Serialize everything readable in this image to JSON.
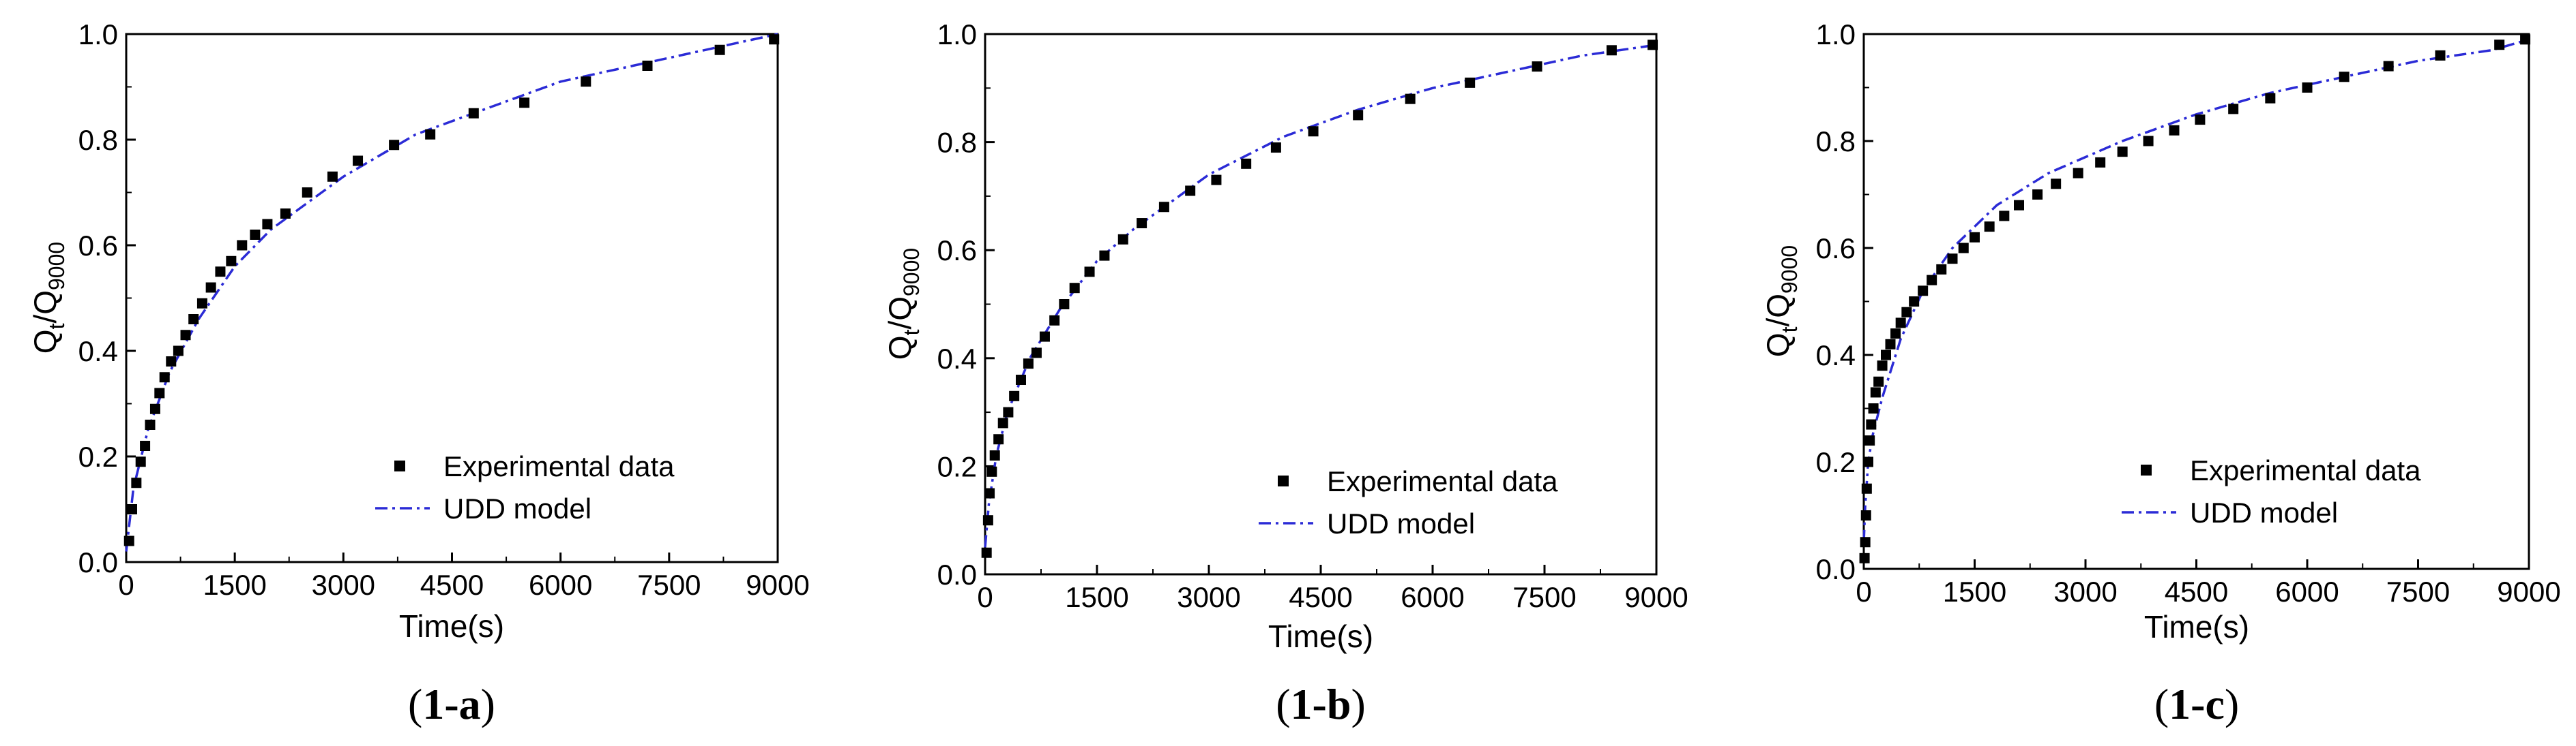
{
  "chart_data": [
    {
      "type": "scatter",
      "caption": "1-a",
      "xlabel": "Time(s)",
      "ylabel_main": "Q",
      "ylabel_sub1": "t",
      "ylabel_mid": "/Q",
      "ylabel_sub2": "9000",
      "xlim": [
        0,
        9000
      ],
      "ylim": [
        0,
        1.0
      ],
      "xticks": [
        "0",
        "1500",
        "3000",
        "4500",
        "6000",
        "7500",
        "9000"
      ],
      "yticks": [
        "0.0",
        "0.2",
        "0.4",
        "0.6",
        "0.8",
        "1.0"
      ],
      "grid": false,
      "legend_position": "lower-right",
      "series": [
        {
          "name": "Experimental data",
          "kind": "markers",
          "color": "#000000",
          "x": [
            40,
            80,
            140,
            200,
            260,
            330,
            400,
            460,
            530,
            620,
            720,
            820,
            930,
            1050,
            1170,
            1300,
            1450,
            1600,
            1780,
            1950,
            2200,
            2500,
            2850,
            3200,
            3700,
            4200,
            4800,
            5500,
            6350,
            7200,
            8200,
            8950
          ],
          "y": [
            0.04,
            0.1,
            0.15,
            0.19,
            0.22,
            0.26,
            0.29,
            0.32,
            0.35,
            0.38,
            0.4,
            0.43,
            0.46,
            0.49,
            0.52,
            0.55,
            0.57,
            0.6,
            0.62,
            0.64,
            0.66,
            0.7,
            0.73,
            0.76,
            0.79,
            0.81,
            0.85,
            0.87,
            0.91,
            0.94,
            0.97,
            0.99
          ]
        },
        {
          "name": "UDD model",
          "kind": "dashdot",
          "color": "#2b2bd6",
          "x": [
            0,
            100,
            300,
            600,
            1000,
            1500,
            2000,
            3000,
            4000,
            5000,
            6000,
            7000,
            8000,
            9000
          ],
          "y": [
            0.02,
            0.14,
            0.25,
            0.36,
            0.46,
            0.56,
            0.63,
            0.73,
            0.81,
            0.86,
            0.91,
            0.94,
            0.97,
            1.0
          ]
        }
      ]
    },
    {
      "type": "scatter",
      "caption": "1-b",
      "xlabel": "Time(s)",
      "ylabel_main": "Q",
      "ylabel_sub1": "t",
      "ylabel_mid": "/Q",
      "ylabel_sub2": "9000",
      "xlim": [
        0,
        9000
      ],
      "ylim": [
        0,
        1.0
      ],
      "xticks": [
        "0",
        "1500",
        "3000",
        "4500",
        "6000",
        "7500",
        "9000"
      ],
      "yticks": [
        "0.0",
        "0.2",
        "0.4",
        "0.6",
        "0.8",
        "1.0"
      ],
      "grid": false,
      "legend_position": "lower-right",
      "series": [
        {
          "name": "Experimental data",
          "kind": "markers",
          "color": "#000000",
          "x": [
            20,
            40,
            60,
            90,
            130,
            180,
            240,
            310,
            390,
            480,
            580,
            690,
            800,
            930,
            1060,
            1200,
            1400,
            1600,
            1850,
            2100,
            2400,
            2750,
            3100,
            3500,
            3900,
            4400,
            5000,
            5700,
            6500,
            7400,
            8400,
            8950
          ],
          "y": [
            0.04,
            0.1,
            0.15,
            0.19,
            0.22,
            0.25,
            0.28,
            0.3,
            0.33,
            0.36,
            0.39,
            0.41,
            0.44,
            0.47,
            0.5,
            0.53,
            0.56,
            0.59,
            0.62,
            0.65,
            0.68,
            0.71,
            0.73,
            0.76,
            0.79,
            0.82,
            0.85,
            0.88,
            0.91,
            0.94,
            0.97,
            0.98
          ]
        },
        {
          "name": "UDD model",
          "kind": "dashdot",
          "color": "#2b2bd6",
          "x": [
            0,
            50,
            150,
            300,
            600,
            1000,
            1500,
            2000,
            3000,
            4000,
            5000,
            6000,
            7000,
            8000,
            9000
          ],
          "y": [
            0.05,
            0.13,
            0.22,
            0.3,
            0.4,
            0.49,
            0.58,
            0.64,
            0.74,
            0.81,
            0.86,
            0.9,
            0.93,
            0.96,
            0.98
          ]
        }
      ]
    },
    {
      "type": "scatter",
      "caption": "1-c",
      "xlabel": "Time(s)",
      "ylabel_main": "Q",
      "ylabel_sub1": "t",
      "ylabel_mid": "/Q",
      "ylabel_sub2": "9000",
      "xlim": [
        0,
        9000
      ],
      "ylim": [
        0,
        1.0
      ],
      "xticks": [
        "0",
        "1500",
        "3000",
        "4500",
        "6000",
        "7500",
        "9000"
      ],
      "yticks": [
        "0.0",
        "0.2",
        "0.4",
        "0.6",
        "0.8",
        "1.0"
      ],
      "grid": false,
      "legend_position": "lower-right",
      "series": [
        {
          "name": "Experimental data",
          "kind": "markers",
          "color": "#000000",
          "x": [
            10,
            20,
            30,
            40,
            60,
            80,
            100,
            130,
            160,
            200,
            250,
            300,
            360,
            430,
            500,
            580,
            680,
            800,
            920,
            1050,
            1200,
            1350,
            1500,
            1700,
            1900,
            2100,
            2350,
            2600,
            2900,
            3200,
            3500,
            3850,
            4200,
            4550,
            5000,
            5500,
            6000,
            6500,
            7100,
            7800,
            8600,
            8950
          ],
          "y": [
            0.02,
            0.05,
            0.1,
            0.15,
            0.2,
            0.24,
            0.27,
            0.3,
            0.33,
            0.35,
            0.38,
            0.4,
            0.42,
            0.44,
            0.46,
            0.48,
            0.5,
            0.52,
            0.54,
            0.56,
            0.58,
            0.6,
            0.62,
            0.64,
            0.66,
            0.68,
            0.7,
            0.72,
            0.74,
            0.76,
            0.78,
            0.8,
            0.82,
            0.84,
            0.86,
            0.88,
            0.9,
            0.92,
            0.94,
            0.96,
            0.98,
            0.99
          ]
        },
        {
          "name": "UDD model",
          "kind": "dashdot",
          "color": "#2b2bd6",
          "x": [
            0,
            20,
            60,
            120,
            250,
            500,
            800,
            1200,
            1800,
            2500,
            3500,
            4500,
            5500,
            6500,
            7500,
            8500,
            9000
          ],
          "y": [
            0.05,
            0.12,
            0.2,
            0.25,
            0.32,
            0.43,
            0.52,
            0.6,
            0.68,
            0.74,
            0.8,
            0.85,
            0.89,
            0.92,
            0.95,
            0.97,
            0.99
          ]
        }
      ]
    }
  ]
}
